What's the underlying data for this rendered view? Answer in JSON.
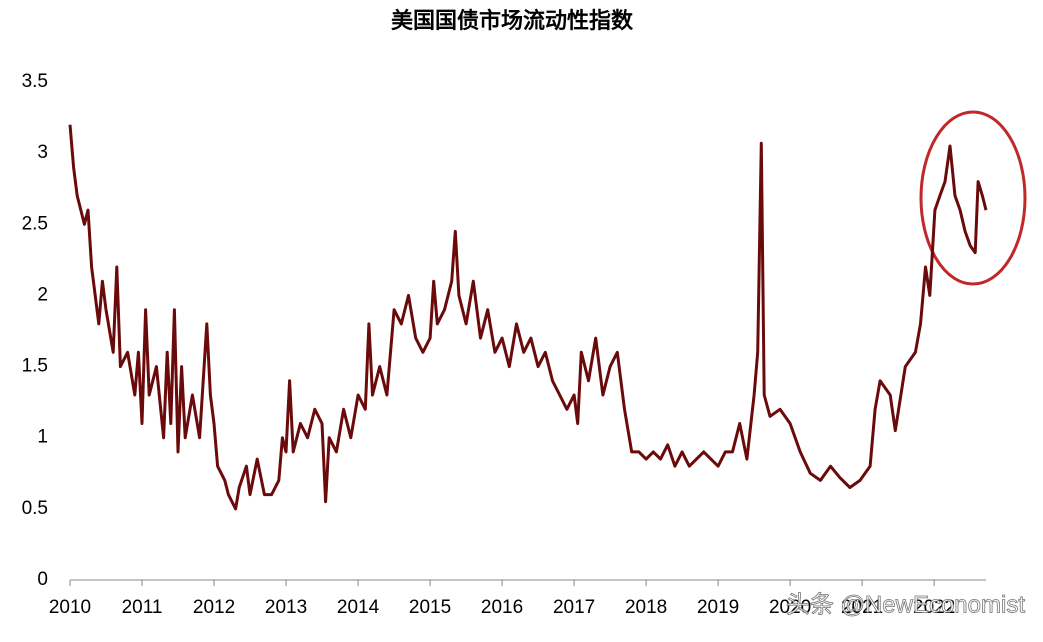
{
  "chart_data": {
    "type": "line",
    "title": "美国国债市场流动性指数",
    "x": [
      2010.0,
      2010.05,
      2010.1,
      2010.2,
      2010.25,
      2010.3,
      2010.4,
      2010.45,
      2010.5,
      2010.6,
      2010.65,
      2010.7,
      2010.8,
      2010.9,
      2010.95,
      2011.0,
      2011.05,
      2011.1,
      2011.2,
      2011.3,
      2011.35,
      2011.4,
      2011.45,
      2011.5,
      2011.55,
      2011.6,
      2011.7,
      2011.8,
      2011.9,
      2011.95,
      2012.0,
      2012.05,
      2012.15,
      2012.2,
      2012.3,
      2012.35,
      2012.45,
      2012.5,
      2012.6,
      2012.7,
      2012.8,
      2012.9,
      2012.95,
      2013.0,
      2013.05,
      2013.1,
      2013.2,
      2013.3,
      2013.4,
      2013.5,
      2013.55,
      2013.6,
      2013.7,
      2013.8,
      2013.9,
      2014.0,
      2014.1,
      2014.15,
      2014.2,
      2014.3,
      2014.4,
      2014.5,
      2014.6,
      2014.7,
      2014.8,
      2014.9,
      2015.0,
      2015.05,
      2015.1,
      2015.2,
      2015.3,
      2015.35,
      2015.4,
      2015.5,
      2015.6,
      2015.7,
      2015.8,
      2015.9,
      2016.0,
      2016.1,
      2016.2,
      2016.3,
      2016.4,
      2016.5,
      2016.6,
      2016.7,
      2016.8,
      2016.9,
      2017.0,
      2017.05,
      2017.1,
      2017.2,
      2017.3,
      2017.4,
      2017.5,
      2017.6,
      2017.65,
      2017.7,
      2017.8,
      2017.9,
      2018.0,
      2018.1,
      2018.2,
      2018.3,
      2018.4,
      2018.5,
      2018.6,
      2018.7,
      2018.8,
      2018.9,
      2019.0,
      2019.1,
      2019.2,
      2019.3,
      2019.4,
      2019.5,
      2019.55,
      2019.6,
      2019.64,
      2019.72,
      2019.86,
      2020.0,
      2020.14,
      2020.28,
      2020.42,
      2020.56,
      2020.69,
      2020.83,
      2020.97,
      2021.11,
      2021.18,
      2021.25,
      2021.39,
      2021.46,
      2021.6,
      2021.74,
      2021.81,
      2021.88,
      2021.94,
      2022.01,
      2022.08,
      2022.15,
      2022.22,
      2022.29,
      2022.36,
      2022.43,
      2022.5,
      2022.57,
      2022.61,
      2022.67,
      2022.72
    ],
    "series": [
      {
        "name": "美国国债市场流动性指数",
        "color": "#6b0a0a",
        "values": [
          3.2,
          2.9,
          2.7,
          2.5,
          2.6,
          2.2,
          1.8,
          2.1,
          1.9,
          1.6,
          2.2,
          1.5,
          1.6,
          1.3,
          1.6,
          1.1,
          1.9,
          1.3,
          1.5,
          1.0,
          1.6,
          1.1,
          1.9,
          0.9,
          1.5,
          1.0,
          1.3,
          1.0,
          1.8,
          1.3,
          1.1,
          0.8,
          0.7,
          0.6,
          0.5,
          0.65,
          0.8,
          0.6,
          0.85,
          0.6,
          0.6,
          0.7,
          1.0,
          0.9,
          1.4,
          0.9,
          1.1,
          1.0,
          1.2,
          1.1,
          0.55,
          1.0,
          0.9,
          1.2,
          1.0,
          1.3,
          1.2,
          1.8,
          1.3,
          1.5,
          1.3,
          1.9,
          1.8,
          2.0,
          1.7,
          1.6,
          1.7,
          2.1,
          1.8,
          1.9,
          2.1,
          2.45,
          2.0,
          1.8,
          2.1,
          1.7,
          1.9,
          1.6,
          1.7,
          1.5,
          1.8,
          1.6,
          1.7,
          1.5,
          1.6,
          1.4,
          1.3,
          1.2,
          1.3,
          1.1,
          1.6,
          1.4,
          1.7,
          1.3,
          1.5,
          1.6,
          1.4,
          1.2,
          0.9,
          0.9,
          0.85,
          0.9,
          0.85,
          0.95,
          0.8,
          0.9,
          0.8,
          0.85,
          0.9,
          0.85,
          0.8,
          0.9,
          0.9,
          1.1,
          0.85,
          1.3,
          1.6,
          3.07,
          1.3,
          1.15,
          1.2,
          1.1,
          0.9,
          0.75,
          0.7,
          0.8,
          0.72,
          0.65,
          0.7,
          0.8,
          1.2,
          1.4,
          1.3,
          1.05,
          1.5,
          1.6,
          1.8,
          2.2,
          2.0,
          2.6,
          2.7,
          2.8,
          3.05,
          2.7,
          2.6,
          2.45,
          2.35,
          2.3,
          2.8,
          2.7,
          2.6
        ]
      }
    ],
    "xlim": [
      2010,
      2022.72
    ],
    "xticks": [
      2010,
      2011,
      2012,
      2013,
      2014,
      2015,
      2016,
      2017,
      2018,
      2019,
      2020,
      2021,
      2022
    ],
    "ylim": [
      0,
      3.5
    ],
    "yticks": [
      0,
      0.5,
      1,
      1.5,
      2,
      2.5,
      3,
      3.5
    ],
    "grid": false,
    "watermark": "头条 @NewEconomist"
  }
}
